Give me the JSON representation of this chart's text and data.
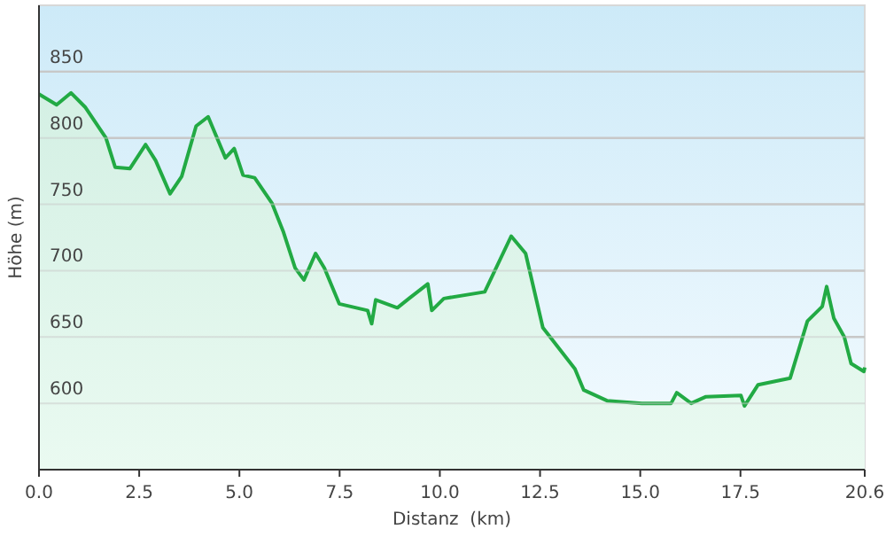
{
  "chart_data": {
    "type": "area",
    "xlabel": "Distanz  (km)",
    "ylabel": "Höhe (m)",
    "xlim": [
      0,
      20.6
    ],
    "ylim": [
      550,
      900
    ],
    "xticks": [
      {
        "value": 0,
        "label": "0.0"
      },
      {
        "value": 2.5,
        "label": "2.5"
      },
      {
        "value": 5,
        "label": "5.0"
      },
      {
        "value": 7.5,
        "label": "7.5"
      },
      {
        "value": 10,
        "label": "10.0"
      },
      {
        "value": 12.5,
        "label": "12.5"
      },
      {
        "value": 15,
        "label": "15.0"
      },
      {
        "value": 17.5,
        "label": "17.5"
      },
      {
        "value": 20.6,
        "label": "20.6"
      }
    ],
    "yticks": [
      600,
      650,
      700,
      750,
      800,
      850
    ],
    "grid": "y",
    "series": [
      {
        "color": "#22aa44",
        "x": [
          0,
          0.44,
          0.8,
          1.16,
          1.67,
          1.9,
          2.27,
          2.66,
          2.91,
          3.27,
          3.56,
          3.92,
          4.22,
          4.65,
          4.87,
          5.09,
          5.38,
          5.81,
          6.1,
          6.39,
          6.61,
          6.9,
          7.12,
          7.49,
          8.2,
          8.3,
          8.4,
          8.94,
          9.23,
          9.7,
          9.8,
          10.1,
          11.12,
          11.78,
          12.14,
          12.57,
          13.37,
          13.59,
          14.17,
          15.04,
          15.77,
          15.91,
          16.27,
          16.64,
          17.51,
          17.6,
          17.94,
          18.74,
          19.17,
          19.54,
          19.65,
          19.83,
          20.09,
          20.26,
          20.58,
          20.6
        ],
        "values": [
          833,
          825,
          834,
          823,
          800,
          778,
          777,
          795,
          783,
          758,
          771,
          809,
          816,
          785,
          792,
          772,
          770,
          751,
          729,
          702,
          693,
          713,
          702,
          675,
          670,
          660,
          678,
          672,
          679,
          690,
          670,
          679,
          684,
          726,
          713,
          657,
          626,
          610,
          602,
          600,
          600,
          608,
          600,
          605,
          606,
          598,
          614,
          619,
          662,
          673,
          688,
          664,
          650,
          630,
          624,
          627
        ]
      }
    ]
  }
}
